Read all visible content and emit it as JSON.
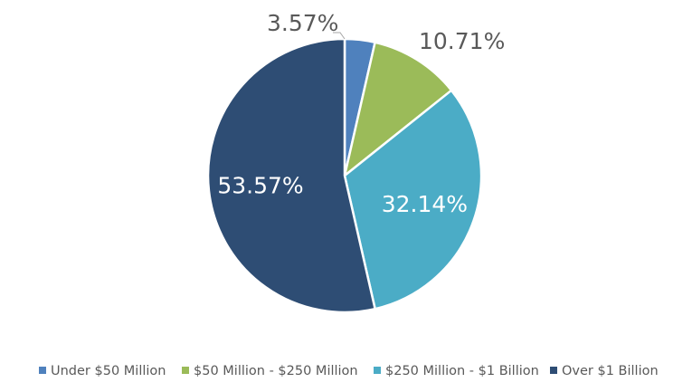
{
  "chart_data": {
    "type": "pie",
    "categories": [
      "Under $50 Million",
      "$50 Million - $250 Million",
      "$250 Million - $1 Billion",
      "Over $1 Billion"
    ],
    "values": [
      3.57,
      10.71,
      32.14,
      53.57
    ],
    "data_labels": [
      "3.57%",
      "10.71%",
      "32.14%",
      "53.57%"
    ],
    "colors": [
      "#4F81BD",
      "#9BBB59",
      "#4BACC6",
      "#2E4D74"
    ],
    "label_colors": [
      "#595959",
      "#595959",
      "#ffffff",
      "#ffffff"
    ],
    "label_placement": [
      "outside",
      "outside",
      "inside",
      "inside"
    ],
    "start_angle_deg": 0,
    "direction": "clockwise",
    "legend_position": "bottom",
    "title": ""
  }
}
